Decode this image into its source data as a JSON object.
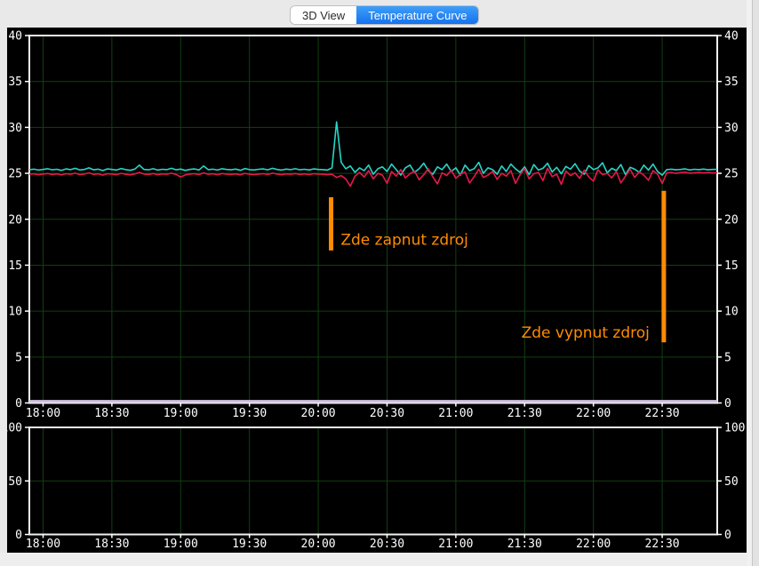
{
  "tabs": [
    {
      "label": "3D View",
      "active": false
    },
    {
      "label": "Temperature Curve",
      "active": true
    }
  ],
  "colors": {
    "accent_blue": "#1f82f2",
    "canvas_bg": "#000000",
    "grid_green": "#123f12",
    "axis_border": "#f2f2f2",
    "tick_text": "#ffffff",
    "series_cyan": "#27d6c9",
    "series_red": "#e8174b",
    "series_baseline": "#cfc3de",
    "annotation_orange": "#ff8c00"
  },
  "chart_data": [
    {
      "type": "line",
      "title": "",
      "xlim_minutes": [
        -6,
        294
      ],
      "ylim": [
        0,
        40
      ],
      "yticks": [
        0,
        5,
        10,
        15,
        20,
        25,
        30,
        35,
        40
      ],
      "grid": true,
      "xticks": [
        {
          "minute": 0,
          "label": "18:00"
        },
        {
          "minute": 30,
          "label": "18:30"
        },
        {
          "minute": 60,
          "label": "19:00"
        },
        {
          "minute": 90,
          "label": "19:30"
        },
        {
          "minute": 120,
          "label": "20:00"
        },
        {
          "minute": 150,
          "label": "20:30"
        },
        {
          "minute": 180,
          "label": "21:00"
        },
        {
          "minute": 210,
          "label": "21:30"
        },
        {
          "minute": 240,
          "label": "22:00"
        },
        {
          "minute": 270,
          "label": "22:30"
        }
      ],
      "x_minutes": [
        -6,
        -4,
        -2,
        0,
        2,
        4,
        6,
        8,
        10,
        12,
        14,
        16,
        18,
        20,
        22,
        24,
        26,
        28,
        30,
        32,
        34,
        36,
        38,
        40,
        42,
        44,
        46,
        48,
        50,
        52,
        54,
        56,
        58,
        60,
        62,
        64,
        66,
        68,
        70,
        72,
        74,
        76,
        78,
        80,
        82,
        84,
        86,
        88,
        90,
        92,
        94,
        96,
        98,
        100,
        102,
        104,
        106,
        108,
        110,
        112,
        114,
        116,
        118,
        120,
        122,
        124,
        126,
        128,
        130,
        132,
        134,
        136,
        138,
        140,
        142,
        144,
        146,
        148,
        150,
        152,
        154,
        156,
        158,
        160,
        162,
        164,
        166,
        168,
        170,
        172,
        174,
        176,
        178,
        180,
        182,
        184,
        186,
        188,
        190,
        192,
        194,
        196,
        198,
        200,
        202,
        204,
        206,
        208,
        210,
        212,
        214,
        216,
        218,
        220,
        222,
        224,
        226,
        228,
        230,
        232,
        234,
        236,
        238,
        240,
        242,
        244,
        246,
        248,
        250,
        252,
        254,
        256,
        258,
        260,
        262,
        264,
        266,
        268,
        270,
        272,
        274,
        276,
        278,
        280,
        282,
        284,
        286,
        288,
        290,
        292,
        294
      ],
      "series": [
        {
          "id": "temperature-cyan",
          "color_key": "series_cyan",
          "values": [
            25.4,
            25.45,
            25.35,
            25.42,
            25.5,
            25.38,
            25.44,
            25.32,
            25.48,
            25.4,
            25.55,
            25.36,
            25.42,
            25.6,
            25.38,
            25.45,
            25.3,
            25.48,
            25.42,
            25.35,
            25.52,
            25.4,
            25.33,
            25.46,
            25.9,
            25.42,
            25.38,
            25.5,
            25.35,
            25.44,
            25.4,
            25.55,
            25.38,
            25.46,
            25.32,
            25.42,
            25.48,
            25.36,
            25.8,
            25.4,
            25.45,
            25.35,
            25.5,
            25.42,
            25.38,
            25.46,
            25.33,
            25.52,
            25.4,
            25.36,
            25.44,
            25.48,
            25.38,
            25.55,
            25.42,
            25.35,
            25.46,
            25.4,
            25.5,
            25.38,
            25.44,
            25.36,
            25.48,
            25.42,
            25.4,
            25.35,
            25.6,
            30.6,
            26.2,
            25.5,
            25.8,
            25.1,
            25.6,
            25.3,
            25.9,
            24.9,
            25.5,
            25.7,
            25.2,
            26.0,
            25.4,
            24.8,
            25.6,
            25.9,
            25.1,
            25.5,
            26.1,
            25.3,
            24.9,
            25.7,
            25.4,
            26.0,
            25.2,
            25.6,
            24.8,
            25.9,
            25.3,
            25.5,
            26.2,
            25.0,
            25.6,
            25.4,
            24.9,
            25.8,
            25.2,
            26.0,
            25.5,
            25.1,
            25.7,
            24.85,
            25.95,
            25.35,
            25.55,
            26.1,
            25.15,
            25.65,
            24.95,
            25.75,
            25.45,
            26.05,
            25.25,
            24.9,
            25.85,
            25.4,
            25.6,
            26.15,
            25.05,
            25.55,
            25.3,
            25.95,
            24.85,
            25.65,
            25.45,
            25.1,
            25.9,
            25.35,
            26.0,
            25.2,
            24.8,
            25.4,
            25.45,
            25.38,
            25.42,
            25.48,
            25.36,
            25.44,
            25.4,
            25.46,
            25.38,
            25.42,
            25.44
          ]
        },
        {
          "id": "temperature-red",
          "color_key": "series_red",
          "values": [
            24.9,
            24.95,
            24.85,
            24.92,
            24.98,
            24.88,
            24.94,
            24.82,
            24.96,
            24.9,
            25.02,
            24.86,
            24.92,
            25.05,
            24.88,
            24.95,
            24.8,
            24.96,
            24.92,
            24.85,
            25.0,
            24.9,
            24.83,
            24.94,
            25.1,
            24.92,
            24.88,
            24.98,
            24.85,
            24.94,
            24.9,
            25.02,
            24.88,
            24.6,
            24.82,
            24.92,
            24.96,
            24.86,
            25.05,
            24.9,
            24.95,
            24.85,
            24.98,
            24.92,
            24.88,
            24.94,
            24.83,
            25.0,
            24.9,
            24.86,
            24.92,
            24.96,
            24.88,
            25.02,
            24.92,
            24.85,
            24.94,
            24.9,
            24.98,
            24.88,
            24.94,
            24.86,
            24.96,
            24.92,
            24.9,
            24.85,
            24.9,
            24.55,
            24.75,
            24.4,
            23.6,
            24.7,
            25.1,
            24.6,
            25.3,
            24.4,
            25.0,
            24.8,
            23.9,
            25.2,
            24.7,
            25.4,
            24.5,
            24.95,
            25.25,
            24.3,
            24.85,
            25.5,
            24.6,
            23.85,
            25.05,
            24.75,
            25.35,
            24.45,
            24.9,
            25.15,
            23.95,
            24.65,
            25.45,
            24.55,
            24.8,
            25.2,
            24.35,
            25.0,
            24.7,
            25.3,
            23.9,
            24.85,
            25.5,
            24.4,
            24.95,
            25.1,
            24.2,
            25.55,
            24.65,
            24.9,
            23.8,
            25.25,
            24.75,
            25.05,
            24.45,
            25.35,
            24.6,
            24.15,
            25.4,
            24.85,
            25.0,
            24.5,
            25.2,
            23.95,
            24.7,
            25.45,
            24.55,
            25.15,
            24.8,
            24.25,
            25.3,
            24.9,
            23.9,
            25.05,
            25.1,
            25.0,
            25.08,
            25.12,
            25.02,
            25.06,
            25.1,
            25.04,
            25.08,
            25.05,
            25.06
          ]
        },
        {
          "id": "baseline-zero",
          "color_key": "series_baseline",
          "x_minutes": [
            -6,
            294
          ],
          "values": [
            0.18,
            0.18
          ]
        }
      ],
      "annotations": [
        {
          "type": "vline",
          "x_minute": 125.6,
          "y_from": 16.6,
          "y_to": 22.4,
          "color_key": "annotation_orange"
        },
        {
          "type": "label",
          "text": "Zde zapnut zdroj",
          "x_minute": 129.8,
          "y": 17.2,
          "anchor": "start",
          "color_key": "annotation_orange"
        },
        {
          "type": "vline",
          "x_minute": 270.7,
          "y_from": 6.6,
          "y_to": 23.1,
          "color_key": "annotation_orange"
        },
        {
          "type": "label",
          "text": "Zde vypnut zdroj",
          "x_minute": 264.5,
          "y": 7.1,
          "anchor": "end",
          "color_key": "annotation_orange"
        }
      ]
    },
    {
      "type": "line",
      "title": "",
      "xlim_minutes": [
        -6,
        294
      ],
      "ylim": [
        0,
        100
      ],
      "yticks": [
        0,
        50,
        100
      ],
      "grid": true,
      "xticks": [
        {
          "minute": 0,
          "label": "18:00"
        },
        {
          "minute": 30,
          "label": "18:30"
        },
        {
          "minute": 60,
          "label": "19:00"
        },
        {
          "minute": 90,
          "label": "19:30"
        },
        {
          "minute": 120,
          "label": "20:00"
        },
        {
          "minute": 150,
          "label": "20:30"
        },
        {
          "minute": 180,
          "label": "21:00"
        },
        {
          "minute": 210,
          "label": "21:30"
        },
        {
          "minute": 240,
          "label": "22:00"
        },
        {
          "minute": 270,
          "label": "22:30"
        }
      ],
      "series": [],
      "annotations": []
    }
  ]
}
